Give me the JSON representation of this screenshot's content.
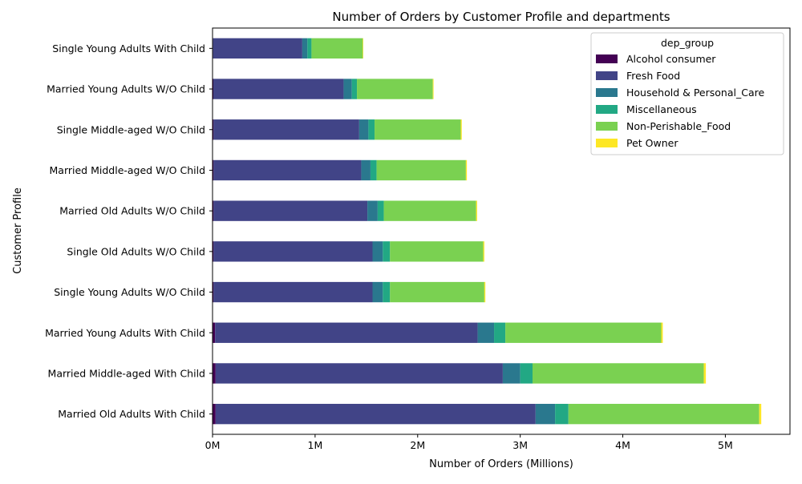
{
  "chart_data": {
    "type": "bar",
    "orientation": "horizontal",
    "stacked": true,
    "title": "Number of Orders by Customer Profile and departments",
    "xlabel": "Number of Orders (Millions)",
    "ylabel": "Customer Profile",
    "xlim": [
      0,
      5.63
    ],
    "xticks": [
      0,
      1,
      2,
      3,
      4,
      5
    ],
    "xtick_labels": [
      "0M",
      "1M",
      "2M",
      "3M",
      "4M",
      "5M"
    ],
    "grid": false,
    "legend": {
      "title": "dep_group",
      "placement": "top-right"
    },
    "categories": [
      "Married Old Adults With Child",
      "Married Middle-aged With Child",
      "Married Young Adults With Child",
      "Single Young Adults W/O Child",
      "Single Old Adults W/O Child",
      "Married Old Adults W/O Child",
      "Married Middle-aged W/O Child",
      "Single Middle-aged W/O Child",
      "Married Young Adults W/O Child",
      "Single Young Adults With Child"
    ],
    "series": [
      {
        "name": "Alcohol consumer",
        "color": "#440154",
        "values": [
          0.03,
          0.03,
          0.025,
          0.01,
          0.01,
          0.01,
          0.01,
          0.01,
          0.008,
          0.005
        ]
      },
      {
        "name": "Fresh Food",
        "color": "#414487",
        "values": [
          3.12,
          2.8,
          2.56,
          1.55,
          1.55,
          1.5,
          1.44,
          1.42,
          1.27,
          0.87
        ]
      },
      {
        "name": "Household & Personal_Care",
        "color": "#2a788e",
        "values": [
          0.19,
          0.17,
          0.16,
          0.1,
          0.1,
          0.1,
          0.09,
          0.09,
          0.08,
          0.05
        ]
      },
      {
        "name": "Miscellaneous",
        "color": "#22a884",
        "values": [
          0.13,
          0.12,
          0.11,
          0.07,
          0.07,
          0.06,
          0.06,
          0.06,
          0.05,
          0.04
        ]
      },
      {
        "name": "Non-Perishable_Food",
        "color": "#7ad151",
        "values": [
          1.86,
          1.67,
          1.52,
          0.92,
          0.91,
          0.9,
          0.87,
          0.84,
          0.74,
          0.5
        ]
      },
      {
        "name": "Pet Owner",
        "color": "#fde725",
        "values": [
          0.02,
          0.02,
          0.015,
          0.01,
          0.01,
          0.01,
          0.01,
          0.01,
          0.007,
          0.005
        ]
      }
    ]
  }
}
